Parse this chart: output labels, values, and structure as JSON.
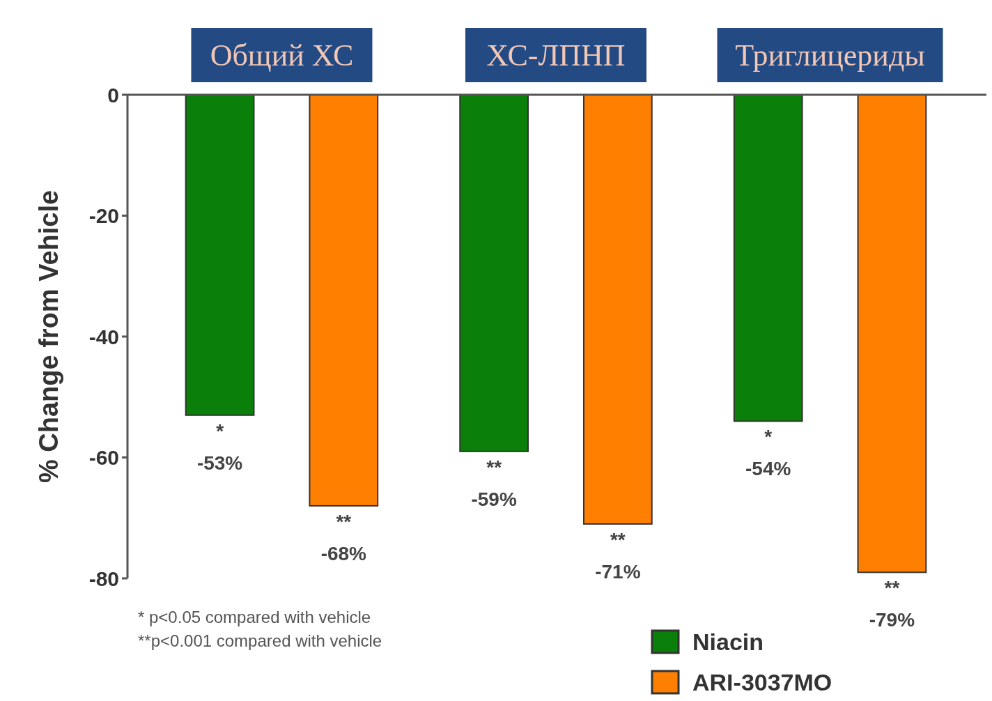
{
  "chart_data": {
    "type": "bar",
    "ylabel": "% Change from Vehicle",
    "categories": [
      "Общий ХС",
      "ХС-ЛПНП",
      "Триглицериды"
    ],
    "series": [
      {
        "name": "Niacin",
        "color": "#0a7f0a",
        "values": [
          -53,
          -59,
          -54
        ],
        "value_labels": [
          "*\n-53%",
          "**\n-59%",
          "*\n-54%"
        ]
      },
      {
        "name": "ARI-3037MO",
        "color": "#ff8000",
        "values": [
          -68,
          -71,
          -79
        ],
        "value_labels": [
          "**\n-68%",
          "**\n-71%",
          "**\n-79%"
        ]
      }
    ],
    "ylim": [
      -80,
      0
    ],
    "yticks": [
      0,
      -20,
      -40,
      -60,
      -80
    ],
    "grid": false,
    "legend": "bottom right",
    "annotations": [
      "*  p<0.05 compared with vehicle",
      "**p<0.001 compared with vehicle"
    ]
  }
}
